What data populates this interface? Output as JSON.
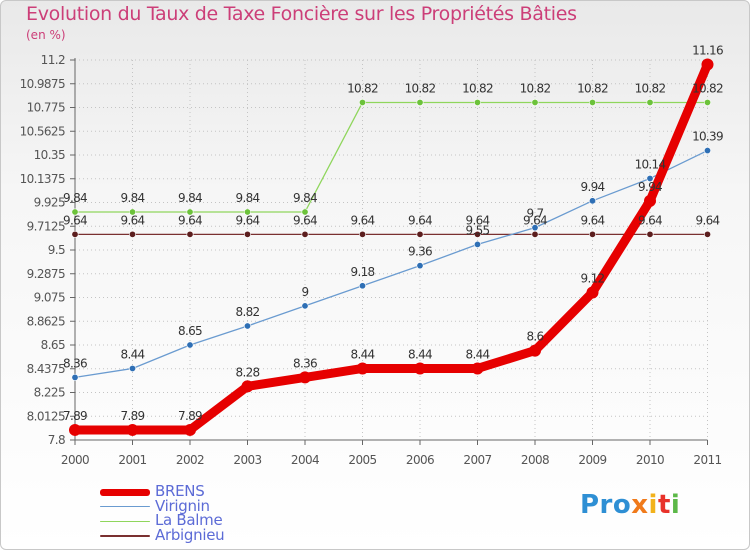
{
  "title": "Evolution du Taux de Taxe Foncière sur les Propriétés Bâties",
  "unit": "(en %)",
  "logo": {
    "p1": "Pro",
    "p2": "x",
    "p3": "i",
    "p4": "t",
    "p5": "i"
  },
  "chart_data": {
    "type": "line",
    "title": "Evolution du Taux de Taxe Foncière sur les Propriétés Bâties",
    "ylabel": "(en %)",
    "xlabel": "",
    "ylim": [
      7.8,
      11.2
    ],
    "yticks": [
      "7.8",
      "8.0125",
      "8.225",
      "8.4375",
      "8.65",
      "8.8625",
      "9.075",
      "9.2875",
      "9.5",
      "9.7125",
      "9.925",
      "10.1375",
      "10.35",
      "10.5625",
      "10.775",
      "10.9875",
      "11.2"
    ],
    "categories": [
      "2000",
      "2001",
      "2002",
      "2003",
      "2004",
      "2005",
      "2006",
      "2007",
      "2008",
      "2009",
      "2010",
      "2011"
    ],
    "grid": true,
    "legend_position": "bottom-left",
    "series": [
      {
        "name": "BRENS",
        "color": "#e60000",
        "values": [
          7.89,
          7.89,
          7.89,
          8.28,
          8.36,
          8.44,
          8.44,
          8.44,
          8.6,
          9.12,
          9.94,
          11.16
        ],
        "labels": [
          "7.89",
          "7.89",
          "7.89",
          "8.28",
          "8.36",
          "8.44",
          "8.44",
          "8.44",
          "8.6",
          "9.12",
          "9.94",
          "11.16"
        ]
      },
      {
        "name": "Virignin",
        "color": "#6a9bd0",
        "marker": "#2e6fb5",
        "values": [
          8.36,
          8.44,
          8.65,
          8.82,
          9.0,
          9.18,
          9.36,
          9.55,
          9.7,
          9.94,
          10.14,
          10.39
        ],
        "labels": [
          "8.36",
          "8.44",
          "8.65",
          "8.82",
          "9",
          "9.18",
          "9.36",
          "9.55",
          "9.7",
          "9.94",
          "10.14",
          "10.39"
        ]
      },
      {
        "name": "La Balme",
        "color": "#8fd65c",
        "marker": "#6cc23a",
        "values": [
          9.84,
          9.84,
          9.84,
          9.84,
          9.84,
          10.82,
          10.82,
          10.82,
          10.82,
          10.82,
          10.82,
          10.82
        ],
        "labels": [
          "9.84",
          "9.84",
          "9.84",
          "9.84",
          "9.84",
          "10.82",
          "10.82",
          "10.82",
          "10.82",
          "10.82",
          "10.82",
          "10.82"
        ]
      },
      {
        "name": "Arbignieu",
        "color": "#7a3030",
        "marker": "#5c1e1e",
        "values": [
          9.64,
          9.64,
          9.64,
          9.64,
          9.64,
          9.64,
          9.64,
          9.64,
          9.64,
          9.64,
          9.64,
          9.64
        ],
        "labels": [
          "9.64",
          "9.64",
          "9.64",
          "9.64",
          "9.64",
          "9.64",
          "9.64",
          "9.64",
          "9.64",
          "9.64",
          "9.64",
          "9.64"
        ]
      }
    ]
  }
}
